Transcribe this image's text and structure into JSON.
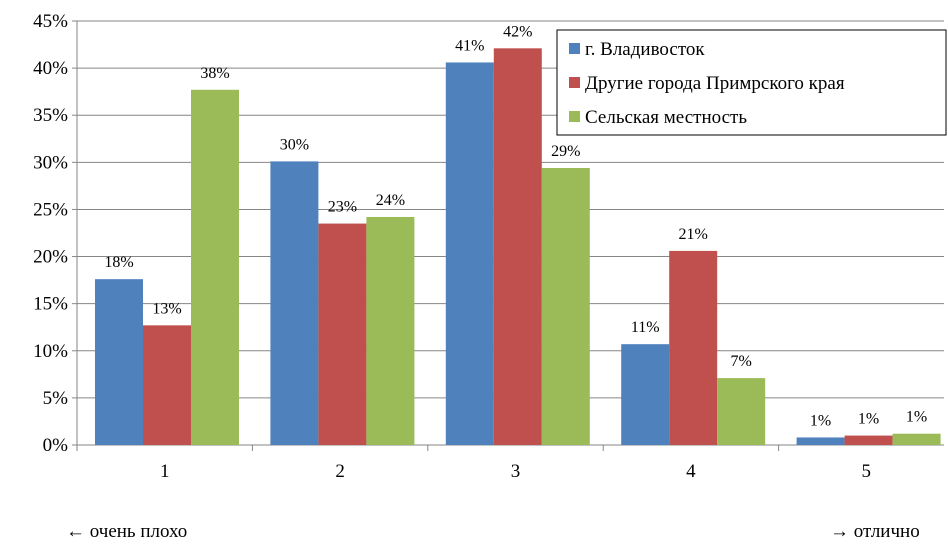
{
  "chart_data": {
    "type": "bar",
    "categories": [
      "1",
      "2",
      "3",
      "4",
      "5"
    ],
    "series": [
      {
        "name": "г. Владивосток",
        "color": "#4f81bd",
        "values": [
          17.6,
          30.1,
          40.6,
          10.7,
          0.8
        ],
        "labels": [
          "18%",
          "30%",
          "41%",
          "11%",
          "1%"
        ]
      },
      {
        "name": "Другие города Примрского края",
        "color": "#c0504d",
        "values": [
          12.7,
          23.5,
          42.1,
          20.6,
          1.0
        ],
        "labels": [
          "13%",
          "23%",
          "42%",
          "21%",
          "1%"
        ]
      },
      {
        "name": "Сельская местность",
        "color": "#9bbb59",
        "values": [
          37.7,
          24.2,
          29.4,
          7.1,
          1.2
        ],
        "labels": [
          "38%",
          "24%",
          "29%",
          "7%",
          "1%"
        ]
      }
    ],
    "ylim": [
      0,
      45
    ],
    "yticks": [
      "0%",
      "5%",
      "10%",
      "15%",
      "20%",
      "25%",
      "30%",
      "35%",
      "40%",
      "45%"
    ],
    "grid": true,
    "legend": "top-right"
  },
  "annotations": {
    "left": "← очень плохо",
    "right": "→ отлично"
  }
}
